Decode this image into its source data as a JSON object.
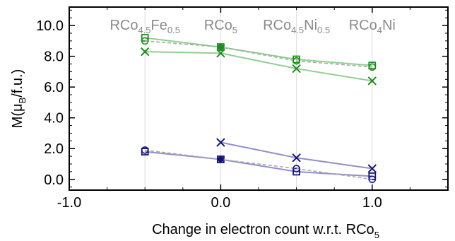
{
  "chart_data": {
    "type": "line",
    "xlabel": "Change in electron count w.r.t. RCo5",
    "xlabel_main": "Change in electron count w.r.t. RCo",
    "xlabel_sub": "5",
    "ylabel_prefix": "M(",
    "ylabel_mu": "μ",
    "ylabel_sub": "B",
    "ylabel_suffix": "/f.u.)",
    "xlim": [
      -1.0,
      1.5
    ],
    "ylim": [
      -0.7,
      11.2
    ],
    "xticks": [
      -1.0,
      0.0,
      1.0
    ],
    "xtick_labels": [
      "-1.0",
      "0.0",
      "1.0"
    ],
    "yticks": [
      0.0,
      2.0,
      4.0,
      6.0,
      8.0,
      10.0
    ],
    "ytick_labels": [
      "0.0",
      "2.0",
      "4.0",
      "6.0",
      "8.0",
      "10.0"
    ],
    "grid": "vertical lines at compositions",
    "compositions": [
      {
        "x": -0.5,
        "main": "RCo",
        "sub1": "4.5",
        "mid": "Fe",
        "sub2": "0.5"
      },
      {
        "x": 0.0,
        "main": "RCo",
        "sub1": "5",
        "mid": "",
        "sub2": ""
      },
      {
        "x": 0.5,
        "main": "RCo",
        "sub1": "4.5",
        "mid": "Ni",
        "sub2": "0.5"
      },
      {
        "x": 1.0,
        "main": "RCo",
        "sub1": "4",
        "mid": "Ni",
        "sub2": ""
      }
    ],
    "colors": {
      "green": "#1e8c1e",
      "green_line": "#8fd08f",
      "blue": "#14147a",
      "blue_line": "#8f8fcf"
    },
    "series": [
      {
        "color": "green",
        "marker": "square",
        "style": "solid",
        "points": [
          [
            -0.5,
            9.2
          ],
          [
            0.0,
            8.6
          ],
          [
            0.5,
            7.8
          ],
          [
            1.0,
            7.4
          ]
        ]
      },
      {
        "color": "green",
        "marker": "circle",
        "style": "dashed",
        "points": [
          [
            -0.5,
            9.0
          ],
          [
            0.0,
            8.6
          ],
          [
            0.5,
            7.7
          ],
          [
            1.0,
            7.3
          ]
        ]
      },
      {
        "color": "green",
        "marker": "x",
        "style": "solid",
        "points": [
          [
            -0.5,
            8.3
          ],
          [
            0.0,
            8.2
          ],
          [
            0.5,
            7.2
          ],
          [
            1.0,
            6.4
          ]
        ]
      },
      {
        "color": "blue",
        "marker": "square",
        "style": "solid",
        "points": [
          [
            -0.5,
            1.8
          ],
          [
            0.0,
            1.3
          ],
          [
            0.5,
            0.5
          ],
          [
            1.0,
            0.2
          ]
        ]
      },
      {
        "color": "blue",
        "marker": "circle",
        "style": "dashed",
        "points": [
          [
            -0.5,
            1.9
          ],
          [
            0.0,
            1.3
          ],
          [
            0.5,
            0.7
          ],
          [
            1.0,
            0.0
          ]
        ]
      },
      {
        "color": "blue",
        "marker": "x",
        "style": "solid",
        "points": [
          [
            0.0,
            2.4
          ],
          [
            0.5,
            1.4
          ],
          [
            1.0,
            0.7
          ]
        ]
      }
    ]
  }
}
